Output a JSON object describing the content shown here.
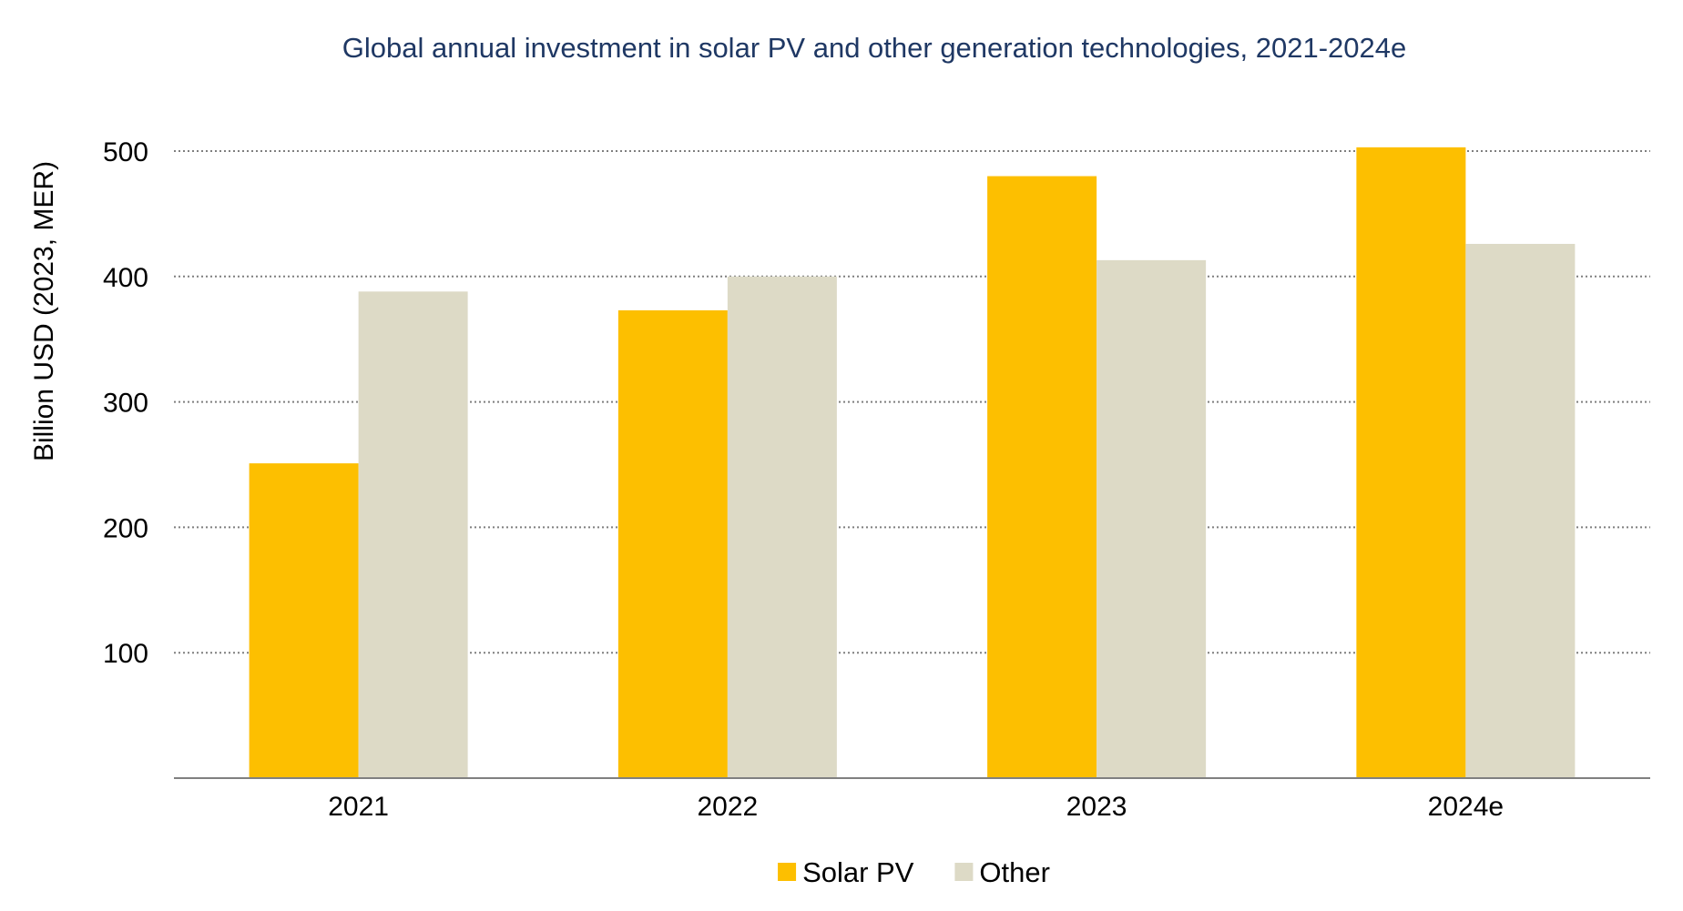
{
  "chart_data": {
    "type": "bar",
    "title": "Global annual investment in solar PV and other generation technologies, 2021-2024e",
    "xlabel": "",
    "ylabel": "Billion USD (2023, MER)",
    "categories": [
      "2021",
      "2022",
      "2023",
      "2024e"
    ],
    "series": [
      {
        "name": "Solar PV",
        "color": "#fdbf00",
        "values": [
          251,
          373,
          480,
          503
        ]
      },
      {
        "name": "Other",
        "color": "#dddac6",
        "values": [
          388,
          400,
          413,
          426
        ]
      }
    ],
    "ylim": [
      0,
      500
    ],
    "yticks": [
      100,
      200,
      300,
      400,
      500
    ],
    "grid": true,
    "grid_style": "dotted",
    "legend_position": "bottom-center",
    "axis_color": "#808080",
    "grid_color": "#7f7f7f",
    "title_color": "#1f3864"
  }
}
